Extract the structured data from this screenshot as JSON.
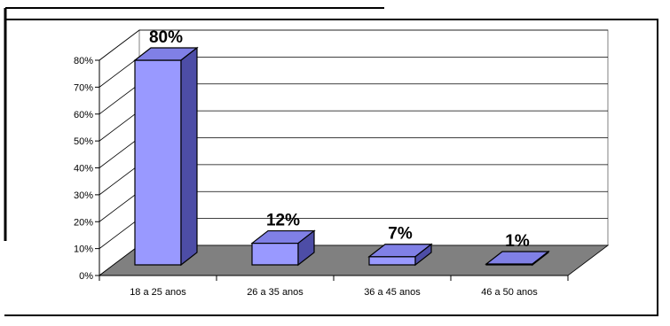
{
  "chart_data": {
    "type": "bar",
    "style": "3d-column",
    "categories": [
      "18 a 25 anos",
      "26 a 35 anos",
      "36 a 45 anos",
      "46 a 50 anos"
    ],
    "values": [
      80,
      12,
      7,
      1
    ],
    "data_labels": [
      "80%",
      "12%",
      "7%",
      "1%"
    ],
    "ylim": [
      0,
      80
    ],
    "yticks": [
      "0%",
      "10%",
      "20%",
      "30%",
      "40%",
      "50%",
      "60%",
      "70%",
      "80%"
    ],
    "grid": true,
    "legend": "none",
    "title": "",
    "xlabel": "",
    "ylabel": "",
    "colors": {
      "bar_front": "#9999ff",
      "bar_top": "#8080e6",
      "bar_side": "#4d4da6",
      "floor": "#808080",
      "grid": "#000000"
    }
  }
}
